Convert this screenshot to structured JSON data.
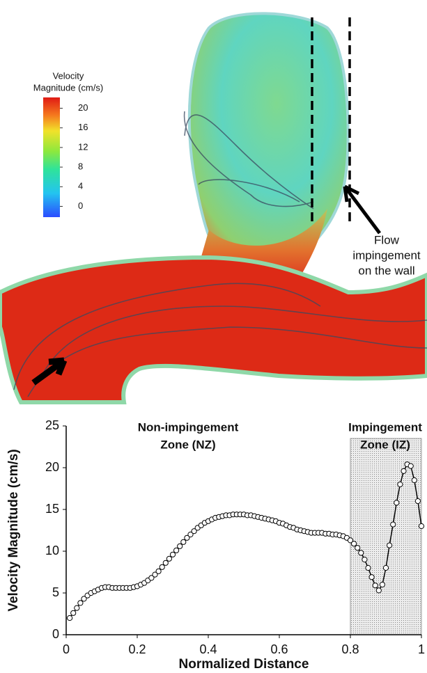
{
  "chart_data": {
    "type": "line",
    "xlabel": "Normalized Distance",
    "ylabel": "Velocity Magnitude (cm/s)",
    "xlim": [
      0,
      1
    ],
    "ylim": [
      0,
      25
    ],
    "xticks": [
      0,
      0.2,
      0.4,
      0.6,
      0.8,
      1
    ],
    "yticks": [
      0,
      5,
      10,
      15,
      20,
      25
    ],
    "annotation_lines": [
      "Non-impingement",
      "Zone (NZ)"
    ],
    "highlight": {
      "x_from": 0.8,
      "x_to": 1,
      "label_lines": [
        "Impingement",
        "Zone (IZ)"
      ],
      "color": "#d0d0d0"
    },
    "x": [
      0.01,
      0.02,
      0.03,
      0.04,
      0.05,
      0.06,
      0.07,
      0.08,
      0.09,
      0.1,
      0.11,
      0.12,
      0.13,
      0.14,
      0.15,
      0.16,
      0.17,
      0.18,
      0.19,
      0.2,
      0.21,
      0.22,
      0.23,
      0.24,
      0.25,
      0.26,
      0.27,
      0.28,
      0.29,
      0.3,
      0.31,
      0.32,
      0.33,
      0.34,
      0.35,
      0.36,
      0.37,
      0.38,
      0.39,
      0.4,
      0.41,
      0.42,
      0.43,
      0.44,
      0.45,
      0.46,
      0.47,
      0.48,
      0.49,
      0.5,
      0.51,
      0.52,
      0.53,
      0.54,
      0.55,
      0.56,
      0.57,
      0.58,
      0.59,
      0.6,
      0.61,
      0.62,
      0.63,
      0.64,
      0.65,
      0.66,
      0.67,
      0.68,
      0.69,
      0.7,
      0.71,
      0.72,
      0.73,
      0.74,
      0.75,
      0.76,
      0.77,
      0.78,
      0.79,
      0.8,
      0.81,
      0.82,
      0.83,
      0.84,
      0.85,
      0.86,
      0.87,
      0.88,
      0.89,
      0.9,
      0.91,
      0.92,
      0.93,
      0.94,
      0.95,
      0.96,
      0.97,
      0.98,
      0.99,
      1
    ],
    "series": [
      {
        "color": "#000000",
        "values": [
          2.0,
          2.6,
          3.2,
          3.8,
          4.3,
          4.7,
          5.0,
          5.2,
          5.4,
          5.6,
          5.7,
          5.7,
          5.6,
          5.6,
          5.6,
          5.6,
          5.6,
          5.6,
          5.7,
          5.8,
          6.0,
          6.2,
          6.5,
          6.8,
          7.2,
          7.6,
          8.1,
          8.6,
          9.1,
          9.6,
          10.1,
          10.6,
          11.1,
          11.6,
          12.0,
          12.4,
          12.8,
          13.1,
          13.4,
          13.6,
          13.8,
          14.0,
          14.1,
          14.2,
          14.3,
          14.3,
          14.4,
          14.4,
          14.4,
          14.4,
          14.3,
          14.3,
          14.2,
          14.1,
          14.0,
          13.9,
          13.8,
          13.7,
          13.6,
          13.4,
          13.3,
          13.1,
          12.9,
          12.8,
          12.6,
          12.5,
          12.4,
          12.3,
          12.2,
          12.2,
          12.2,
          12.2,
          12.1,
          12.1,
          12.0,
          12.0,
          11.9,
          11.8,
          11.6,
          11.3,
          10.9,
          10.4,
          9.8,
          9.0,
          8.0,
          6.9,
          5.9,
          5.3,
          6.0,
          8.0,
          10.7,
          13.2,
          15.8,
          18.0,
          19.6,
          20.4,
          20.2,
          18.5,
          16.0,
          13.0
        ]
      }
    ]
  },
  "flow_image": {
    "colorbar": {
      "title_lines": [
        "Velocity",
        "Magnitude (cm/s)"
      ],
      "lim": [
        -2.2,
        22.2
      ],
      "ticks": [
        0,
        4,
        8,
        12,
        16,
        20
      ]
    },
    "annotation_lines": [
      "Flow",
      "impingement",
      "on the wall"
    ]
  }
}
